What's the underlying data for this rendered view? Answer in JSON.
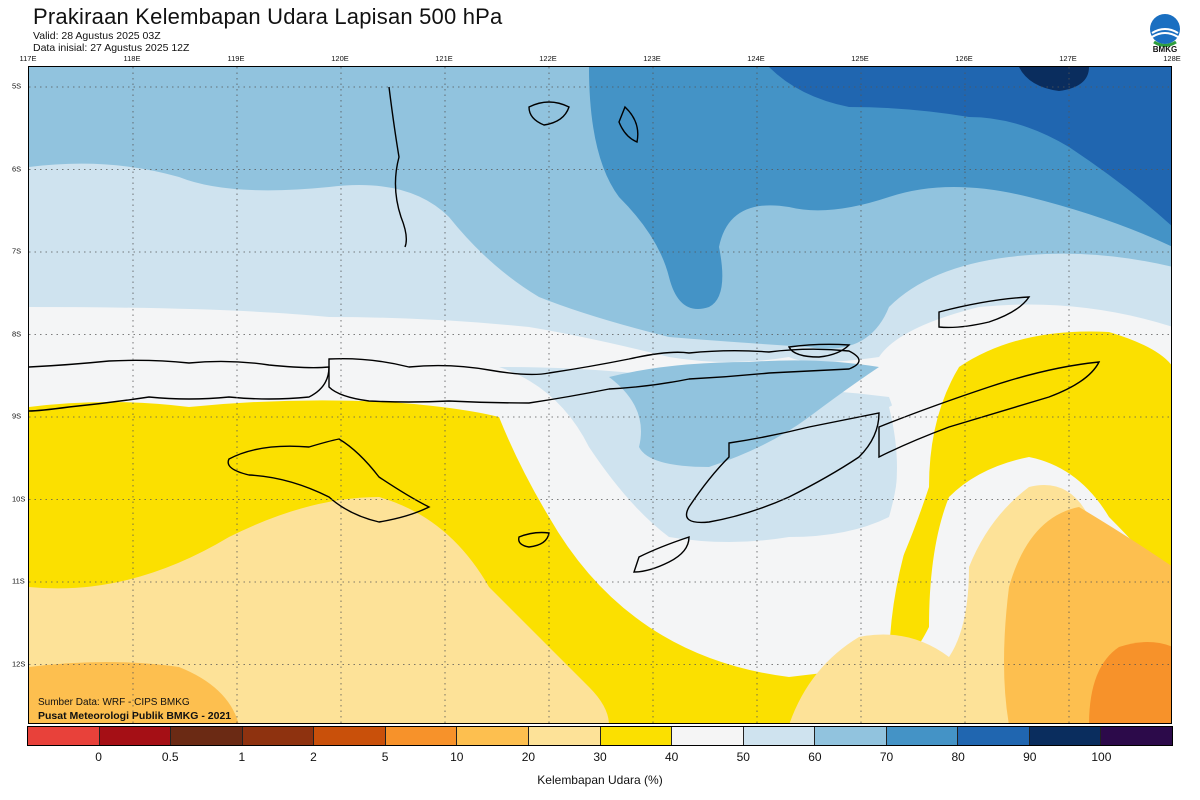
{
  "header": {
    "title": "Prakiraan Kelembapan Udara Lapisan 500 hPa",
    "valid": "Valid: 28 Agustus 2025 03Z",
    "initial": "Data inisial: 27 Agustus 2025 12Z"
  },
  "logo": {
    "icon": "bmkg-logo-icon",
    "text": "BMKG"
  },
  "map": {
    "lon_ticks": [
      "117E",
      "118E",
      "119E",
      "120E",
      "121E",
      "122E",
      "123E",
      "124E",
      "125E",
      "126E",
      "127E",
      "128E"
    ],
    "lat_ticks": [
      "5S",
      "6S",
      "7S",
      "8S",
      "9S",
      "10S",
      "11S",
      "12S"
    ],
    "grid": true
  },
  "source": {
    "line1": "Sumber Data: WRF - CIPS BMKG",
    "line2": "Pusat Meteorologi Publik BMKG - 2021"
  },
  "colorbar": {
    "title": "Kelembapan Udara (%)",
    "labels": [
      "0",
      "0.5",
      "1",
      "2",
      "5",
      "10",
      "20",
      "30",
      "40",
      "50",
      "60",
      "70",
      "80",
      "90",
      "100"
    ],
    "colors": [
      "#e8413a",
      "#a50f15",
      "#6b2a14",
      "#8e320f",
      "#c9500a",
      "#f7922a",
      "#fdbf4f",
      "#fde298",
      "#fbe000",
      "#f5f5f5",
      "#cfe3ef",
      "#91c3de",
      "#4493c6",
      "#2066b0",
      "#0a2d5e",
      "#2c0a4a"
    ]
  }
}
